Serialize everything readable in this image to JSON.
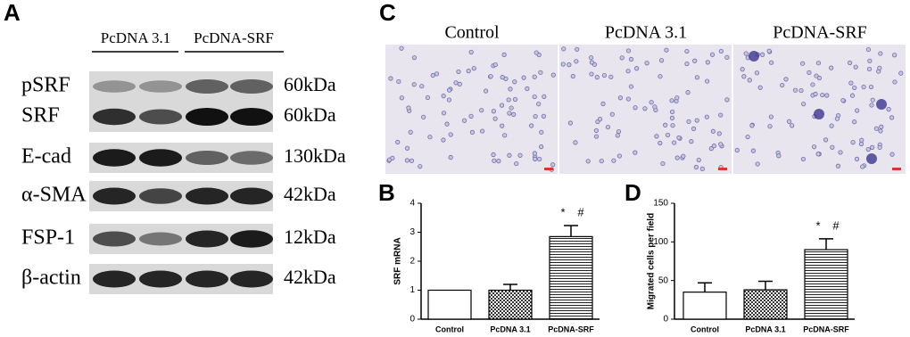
{
  "panel_a": {
    "letter": "A",
    "groups": [
      "PcDNA 3.1",
      "PcDNA-SRF"
    ],
    "rows": [
      {
        "label": "pSRF",
        "size": "60kDa"
      },
      {
        "label": "SRF",
        "size": "60kDa"
      },
      {
        "label": "E-cad",
        "size": "130kDa"
      },
      {
        "label": "α-SMA",
        "size": "42kDa"
      },
      {
        "label": "FSP-1",
        "size": "12kDa"
      },
      {
        "label": "β-actin",
        "size": "42kDa"
      }
    ]
  },
  "panel_c": {
    "letter": "C",
    "columns": [
      "Control",
      "PcDNA 3.1",
      "PcDNA-SRF"
    ]
  },
  "chart_data": [
    {
      "panel": "B",
      "type": "bar",
      "ylabel": "SRF mRNA",
      "categories": [
        "Control",
        "PcDNA 3.1",
        "PcDNA-SRF"
      ],
      "values": [
        1,
        1,
        2.85
      ],
      "errors": [
        null,
        0.2,
        0.38
      ],
      "annotations": [
        null,
        null,
        [
          "*",
          "#"
        ]
      ],
      "patterns": [
        "plain",
        "checker",
        "hlines"
      ],
      "ylim": [
        0,
        4
      ],
      "yticks": [
        0,
        1,
        2,
        3,
        4
      ]
    },
    {
      "panel": "D",
      "type": "bar",
      "ylabel": "Migrated cells per field",
      "categories": [
        "Control",
        "PcDNA 3.1",
        "PcDNA-SRF"
      ],
      "values": [
        35,
        38,
        90
      ],
      "errors": [
        12,
        11,
        14
      ],
      "annotations": [
        null,
        null,
        [
          "*",
          "#"
        ]
      ],
      "patterns": [
        "plain",
        "checker",
        "hlines"
      ],
      "ylim": [
        0,
        150
      ],
      "yticks": [
        0,
        50,
        100,
        150
      ]
    }
  ]
}
